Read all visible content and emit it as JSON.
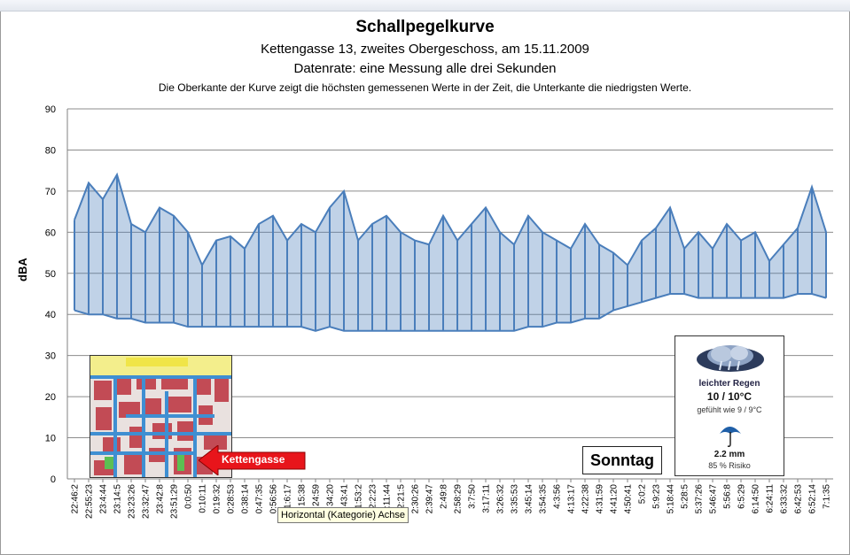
{
  "chart_data": {
    "type": "line",
    "title": "Schallpegelkurve",
    "subtitle_lines": [
      "Kettengasse 13, zweites Obergeschoss, am 15.11.2009",
      "Datenrate: eine Messung alle drei Sekunden",
      "Die Oberkante der Kurve zeigt die höchsten gemessenen Werte  in der Zeit, die Unterkante  die niedrigsten Werte."
    ],
    "ylabel": "dBA",
    "ylim": [
      0,
      90
    ],
    "yticks": [
      0,
      10,
      20,
      30,
      40,
      50,
      60,
      70,
      80,
      90
    ],
    "grid": true,
    "x_tick_labels": [
      "22:46:2",
      "22:55:23",
      "23:4:44",
      "23:14:5",
      "23:23:26",
      "23:32:47",
      "23:42:8",
      "23:51:29",
      "0:0:50",
      "0:10:11",
      "0:19:32",
      "0:28:53",
      "0:38:14",
      "0:47:35",
      "0:56:56",
      "1:6:17",
      "1:15:38",
      "1:24:59",
      "1:34:20",
      "1:43:41",
      "1:53:2",
      "2:2:23",
      "2:11:44",
      "2:21:5",
      "2:30:26",
      "2:39:47",
      "2:49:8",
      "2:58:29",
      "3:7:50",
      "3:17:11",
      "3:26:32",
      "3:35:53",
      "3:45:14",
      "3:54:35",
      "4:3:56",
      "4:13:17",
      "4:22:38",
      "4:31:59",
      "4:41:20",
      "4:50:41",
      "5:0:2",
      "5:9:23",
      "5:18:44",
      "5:28:5",
      "5:37:26",
      "5:46:47",
      "5:56:8",
      "6:5:29",
      "6:14:50",
      "6:24:11",
      "6:33:32",
      "6:42:53",
      "6:52:14",
      "7:1:35"
    ],
    "series": [
      {
        "color": "#4a7ebb",
        "x": [
          "22:46:2",
          "22:55:23",
          "23:4:44",
          "23:14:5",
          "23:23:26",
          "23:32:47",
          "23:42:8",
          "23:51:29",
          "0:0:50",
          "0:10:11",
          "0:19:32",
          "0:28:53",
          "0:38:14",
          "0:47:35",
          "0:56:56",
          "1:6:17",
          "1:15:38",
          "1:24:59",
          "1:34:20",
          "1:43:41",
          "1:53:2",
          "2:2:23",
          "2:11:44",
          "2:21:5",
          "2:30:26",
          "2:39:47",
          "2:49:8",
          "2:58:29",
          "3:7:50",
          "3:17:11",
          "3:26:32",
          "3:35:53",
          "3:45:14",
          "3:54:35",
          "4:3:56",
          "4:13:17",
          "4:22:38",
          "4:31:59",
          "4:41:20",
          "4:50:41",
          "5:0:2",
          "5:9:23",
          "5:18:44",
          "5:28:5",
          "5:37:26",
          "5:46:47",
          "5:56:8",
          "6:5:29",
          "6:14:50",
          "6:24:11",
          "6:33:32",
          "6:42:53",
          "6:52:14",
          "7:1:35"
        ],
        "max": [
          63,
          72,
          68,
          74,
          62,
          60,
          66,
          64,
          60,
          52,
          58,
          59,
          56,
          62,
          64,
          58,
          62,
          60,
          66,
          70,
          58,
          62,
          64,
          60,
          58,
          57,
          64,
          58,
          62,
          66,
          60,
          57,
          64,
          60,
          58,
          56,
          62,
          57,
          55,
          52,
          58,
          61,
          66,
          56,
          60,
          56,
          62,
          58,
          60,
          53,
          57,
          61,
          71,
          60
        ],
        "min": [
          41,
          40,
          40,
          39,
          39,
          38,
          38,
          38,
          37,
          37,
          37,
          37,
          37,
          37,
          37,
          37,
          37,
          36,
          37,
          36,
          36,
          36,
          36,
          36,
          36,
          36,
          36,
          36,
          36,
          36,
          36,
          36,
          37,
          37,
          38,
          38,
          39,
          39,
          41,
          42,
          43,
          44,
          45,
          45,
          44,
          44,
          44,
          44,
          44,
          44,
          44,
          45,
          45,
          44
        ]
      }
    ]
  },
  "xaxis_tooltip": "Horizontal (Kategorie) Achse",
  "map_label": "Kettengasse",
  "day_label": "Sonntag",
  "weather": {
    "icon": "rain-cloud-icon",
    "condition": "leichter Regen",
    "temperature": "10 / 10°C",
    "feels_like": "gefühlt wie 9 / 9°C",
    "umbrella_icon": "umbrella-icon",
    "precipitation": "2.2 mm",
    "risk": "85 % Risiko"
  }
}
